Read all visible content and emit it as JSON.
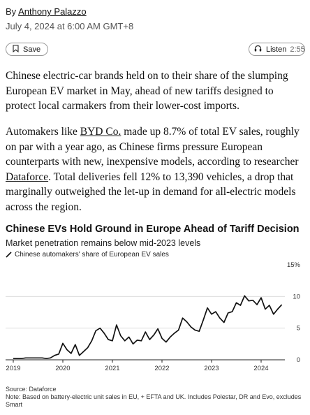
{
  "byline": {
    "prefix": "By",
    "author": "Anthony Palazzo"
  },
  "dateline": "July 4, 2024 at 6:00 AM GMT+8",
  "toolbar": {
    "save_label": "Save",
    "listen_label": "Listen",
    "listen_duration": "2:55"
  },
  "body": {
    "p1": "Chinese electric-car brands held on to their share of the slumping European EV market in May, ahead of new tariffs designed to protect local carmakers from their lower-cost imports.",
    "p2_a": "Automakers like ",
    "p2_link1": "BYD Co.",
    "p2_b": " made up 8.7% of total EV sales, roughly on par with a year ago, as Chinese firms pressure European counterparts with new, inexpensive models, according to researcher ",
    "p2_link2": "Dataforce",
    "p2_c": ". Total deliveries fell 12% to 13,390 vehicles, a drop that marginally outweighed the let-up in demand for all-electric models across the region."
  },
  "chart": {
    "title": "Chinese EVs Hold Ground in Europe Ahead of Tariff Decision",
    "subtitle": "Market penetration remains below mid-2023 levels",
    "legend_label": "Chinese automakers' share of European EV sales",
    "line_color": "#111111",
    "source": "Source: Dataforce",
    "note": "Note: Based on battery-electric unit sales in EU, + EFTA and UK. Includes Polestar, DR and Evo, excludes Smart"
  },
  "chart_data": {
    "type": "line",
    "x_start": "2019-01",
    "x_end": "2024-05",
    "x_ticks": [
      "2019",
      "2020",
      "2021",
      "2022",
      "2023",
      "2024"
    ],
    "y_ticks": [
      "0",
      "5",
      "10",
      "15%"
    ],
    "ylim": [
      0,
      15
    ],
    "series": [
      {
        "name": "Chinese automakers' share of European EV sales",
        "values": [
          0.2,
          0.2,
          0.2,
          0.3,
          0.3,
          0.3,
          0.3,
          0.3,
          0.2,
          0.3,
          0.7,
          0.9,
          2.6,
          1.6,
          1.0,
          2.4,
          0.7,
          1.3,
          1.9,
          3.0,
          4.6,
          5.0,
          4.2,
          3.2,
          3.0,
          5.5,
          3.8,
          3.0,
          3.6,
          2.5,
          3.1,
          3.0,
          4.4,
          3.2,
          3.9,
          4.9,
          3.4,
          2.8,
          3.6,
          4.2,
          4.7,
          6.6,
          6.0,
          5.2,
          4.7,
          4.5,
          6.3,
          8.2,
          7.2,
          7.6,
          6.6,
          5.9,
          7.4,
          7.6,
          9.0,
          8.6,
          10.1,
          9.3,
          9.4,
          8.7,
          9.8,
          8.0,
          8.6,
          7.2,
          8.0,
          8.7
        ]
      }
    ],
    "grid": true
  }
}
